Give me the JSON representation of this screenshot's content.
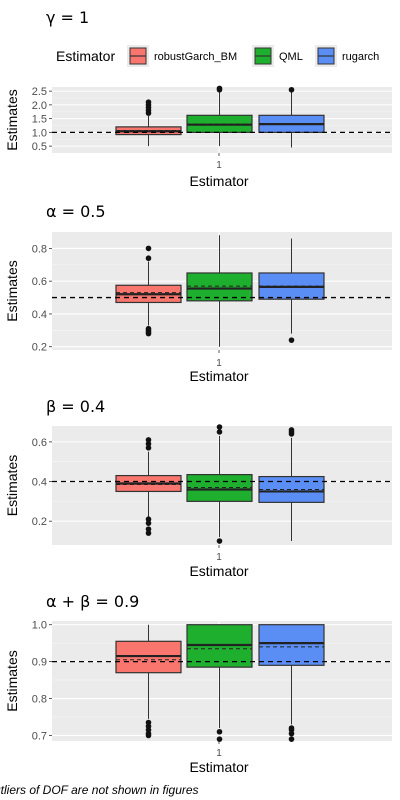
{
  "legend": {
    "title": "Estimator",
    "items": [
      {
        "label": "robustGarch_BM",
        "color": "#F8766D"
      },
      {
        "label": "QML",
        "color": "#1FAF2E"
      },
      {
        "label": "rugarch",
        "color": "#5B8EF5"
      }
    ]
  },
  "footnote": "utliers of DOF are not shown in figures",
  "chart_data": [
    {
      "type": "box",
      "title": "γ = 1",
      "xlabel": "Estimator",
      "ylabel": "Estimates",
      "x_tick": "1",
      "y_ticks": [
        "0.5",
        "1.0",
        "1.5",
        "2.0",
        "2.5"
      ],
      "ylim": [
        0.25,
        2.65
      ],
      "reference_line": 1.0,
      "grid": true,
      "legend_position": "top",
      "series": [
        {
          "name": "robustGarch_BM",
          "q1": 0.92,
          "median": 1.04,
          "mean": 1.07,
          "q3": 1.2,
          "whisker_low": 0.5,
          "whisker_high": 1.6,
          "outliers": [
            1.7,
            1.8,
            1.9,
            2.0,
            2.1
          ]
        },
        {
          "name": "QML",
          "q1": 1.0,
          "median": 1.28,
          "mean": 1.3,
          "q3": 1.62,
          "whisker_low": 0.5,
          "whisker_high": 2.5,
          "outliers": [
            2.55,
            2.6
          ]
        },
        {
          "name": "rugarch",
          "q1": 1.0,
          "median": 1.3,
          "mean": 1.32,
          "q3": 1.62,
          "whisker_low": 0.45,
          "whisker_high": 2.5,
          "outliers": [
            2.55
          ]
        }
      ]
    },
    {
      "type": "box",
      "title": "α = 0.5",
      "xlabel": "Estimator",
      "ylabel": "Estimates",
      "x_tick": "1",
      "y_ticks": [
        "0.2",
        "0.4",
        "0.6",
        "0.8"
      ],
      "ylim": [
        0.18,
        0.9
      ],
      "reference_line": 0.5,
      "grid": true,
      "series": [
        {
          "name": "robustGarch_BM",
          "q1": 0.47,
          "median": 0.52,
          "mean": 0.53,
          "q3": 0.575,
          "whisker_low": 0.33,
          "whisker_high": 0.72,
          "outliers": [
            0.28,
            0.29,
            0.3,
            0.31,
            0.74,
            0.8
          ]
        },
        {
          "name": "QML",
          "q1": 0.48,
          "median": 0.555,
          "mean": 0.57,
          "q3": 0.65,
          "whisker_low": 0.2,
          "whisker_high": 0.88,
          "outliers": []
        },
        {
          "name": "rugarch",
          "q1": 0.49,
          "median": 0.565,
          "mean": 0.57,
          "q3": 0.65,
          "whisker_low": 0.28,
          "whisker_high": 0.86,
          "outliers": [
            0.24
          ]
        }
      ]
    },
    {
      "type": "box",
      "title": "β = 0.4",
      "xlabel": "Estimator",
      "ylabel": "Estimates",
      "x_tick": "1",
      "y_ticks": [
        "0.2",
        "0.4",
        "0.6"
      ],
      "ylim": [
        0.08,
        0.68
      ],
      "reference_line": 0.4,
      "grid": true,
      "series": [
        {
          "name": "robustGarch_BM",
          "q1": 0.35,
          "median": 0.39,
          "mean": 0.385,
          "q3": 0.43,
          "whisker_low": 0.22,
          "whisker_high": 0.55,
          "outliers": [
            0.14,
            0.16,
            0.19,
            0.21,
            0.57,
            0.59,
            0.61
          ]
        },
        {
          "name": "QML",
          "q1": 0.3,
          "median": 0.36,
          "mean": 0.37,
          "q3": 0.435,
          "whisker_low": 0.12,
          "whisker_high": 0.63,
          "outliers": [
            0.1,
            0.65,
            0.675
          ]
        },
        {
          "name": "rugarch",
          "q1": 0.295,
          "median": 0.35,
          "mean": 0.36,
          "q3": 0.425,
          "whisker_low": 0.1,
          "whisker_high": 0.62,
          "outliers": [
            0.64,
            0.65,
            0.66
          ]
        }
      ]
    },
    {
      "type": "box",
      "title": "α + β = 0.9",
      "xlabel": "Estimator",
      "ylabel": "Estimates",
      "x_tick": "1",
      "y_ticks": [
        "0.7",
        "0.8",
        "0.9",
        "1.0"
      ],
      "ylim": [
        0.685,
        1.01
      ],
      "reference_line": 0.9,
      "grid": true,
      "series": [
        {
          "name": "robustGarch_BM",
          "q1": 0.87,
          "median": 0.915,
          "mean": 0.905,
          "q3": 0.955,
          "whisker_low": 0.745,
          "whisker_high": 1.0,
          "outliers": [
            0.7,
            0.705,
            0.715,
            0.725,
            0.735
          ]
        },
        {
          "name": "QML",
          "q1": 0.885,
          "median": 0.945,
          "mean": 0.935,
          "q3": 1.0,
          "whisker_low": 0.72,
          "whisker_high": 1.0,
          "outliers": [
            0.69,
            0.71
          ]
        },
        {
          "name": "rugarch",
          "q1": 0.89,
          "median": 0.95,
          "mean": 0.94,
          "q3": 1.0,
          "whisker_low": 0.73,
          "whisker_high": 1.0,
          "outliers": [
            0.69,
            0.705,
            0.715,
            0.72
          ]
        }
      ]
    }
  ]
}
